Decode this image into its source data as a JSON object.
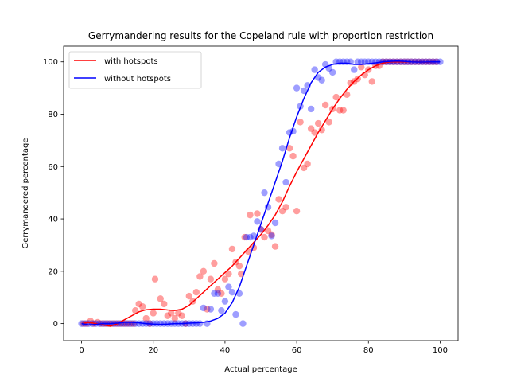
{
  "chart_data": {
    "type": "scatter",
    "title": "Gerrymandering results for the Copeland rule with proportion restriction",
    "xlabel": "Actual percentage",
    "ylabel": "Gerrymandered percentage",
    "xlim": [
      -5,
      105
    ],
    "ylim": [
      -6.5,
      106
    ],
    "xticks": [
      0,
      20,
      40,
      60,
      80,
      100
    ],
    "yticks": [
      0,
      20,
      40,
      60,
      80,
      100
    ],
    "grid": false,
    "legend_position": "top-left",
    "series": [
      {
        "name": "with hotspots",
        "color": "#ff0000",
        "points": [
          [
            0.5,
            0
          ],
          [
            1.5,
            0
          ],
          [
            2.5,
            1
          ],
          [
            3.5,
            0
          ],
          [
            4.5,
            0.5
          ],
          [
            5.5,
            0
          ],
          [
            6.5,
            0
          ],
          [
            7.5,
            0
          ],
          [
            8.5,
            0
          ],
          [
            9.5,
            0
          ],
          [
            10.5,
            0
          ],
          [
            11.5,
            0
          ],
          [
            12.5,
            0
          ],
          [
            13.5,
            0
          ],
          [
            14.5,
            0
          ],
          [
            15,
            5
          ],
          [
            16,
            7.5
          ],
          [
            17,
            6.5
          ],
          [
            18,
            2
          ],
          [
            19,
            0
          ],
          [
            20,
            4
          ],
          [
            20.5,
            17
          ],
          [
            22,
            9.5
          ],
          [
            23,
            7.5
          ],
          [
            24,
            3
          ],
          [
            25,
            4
          ],
          [
            26,
            2
          ],
          [
            27,
            4
          ],
          [
            28,
            3
          ],
          [
            29,
            0
          ],
          [
            30,
            10.5
          ],
          [
            31,
            8.5
          ],
          [
            32,
            12
          ],
          [
            33,
            18
          ],
          [
            34,
            20
          ],
          [
            35,
            5.5
          ],
          [
            36,
            17
          ],
          [
            37,
            23
          ],
          [
            38,
            13
          ],
          [
            39,
            11.5
          ],
          [
            40,
            17
          ],
          [
            41,
            19
          ],
          [
            42,
            28.5
          ],
          [
            43,
            23.5
          ],
          [
            44,
            22
          ],
          [
            44.5,
            19
          ],
          [
            45.5,
            33
          ],
          [
            46.5,
            27.5
          ],
          [
            47,
            41.5
          ],
          [
            48,
            29
          ],
          [
            49,
            42
          ],
          [
            50,
            36
          ],
          [
            51,
            33
          ],
          [
            52,
            35.5
          ],
          [
            53,
            34
          ],
          [
            54,
            29.5
          ],
          [
            55,
            47.5
          ],
          [
            56,
            43
          ],
          [
            57,
            44.5
          ],
          [
            58,
            67
          ],
          [
            59,
            64
          ],
          [
            60,
            43
          ],
          [
            61,
            77
          ],
          [
            62,
            59.5
          ],
          [
            63,
            61
          ],
          [
            64,
            74.5
          ],
          [
            65,
            73
          ],
          [
            66,
            76.5
          ],
          [
            67,
            74
          ],
          [
            68,
            83.5
          ],
          [
            69,
            77
          ],
          [
            70,
            82
          ],
          [
            71,
            86.5
          ],
          [
            72,
            81.5
          ],
          [
            73,
            81.5
          ],
          [
            74,
            87.5
          ],
          [
            75,
            92
          ],
          [
            76,
            92.5
          ],
          [
            77,
            93.5
          ],
          [
            78,
            98
          ],
          [
            79,
            95
          ],
          [
            80,
            97
          ],
          [
            81,
            92.5
          ],
          [
            82,
            98.5
          ],
          [
            83,
            98.5
          ],
          [
            84,
            100
          ],
          [
            85,
            100
          ],
          [
            86,
            100
          ],
          [
            87,
            100
          ],
          [
            88,
            100
          ],
          [
            89,
            100
          ],
          [
            90,
            100
          ],
          [
            91,
            100
          ],
          [
            92,
            100
          ],
          [
            93,
            100
          ],
          [
            94,
            100
          ],
          [
            95,
            100
          ],
          [
            96,
            100
          ],
          [
            97,
            100
          ],
          [
            98,
            100
          ],
          [
            99,
            100
          ]
        ]
      },
      {
        "name": "without hotspots",
        "color": "#0000ff",
        "points": [
          [
            0,
            0
          ],
          [
            1,
            0
          ],
          [
            2,
            0
          ],
          [
            3,
            0
          ],
          [
            4,
            0
          ],
          [
            5,
            0
          ],
          [
            6,
            0
          ],
          [
            7,
            0
          ],
          [
            8,
            0
          ],
          [
            9,
            0
          ],
          [
            10,
            0
          ],
          [
            11,
            0
          ],
          [
            12,
            0
          ],
          [
            13,
            0
          ],
          [
            14,
            0
          ],
          [
            15,
            0
          ],
          [
            16,
            0
          ],
          [
            17,
            0
          ],
          [
            18,
            0
          ],
          [
            19,
            0
          ],
          [
            20,
            0
          ],
          [
            21,
            0
          ],
          [
            22,
            0
          ],
          [
            23,
            0
          ],
          [
            24,
            0
          ],
          [
            25,
            0
          ],
          [
            26,
            0
          ],
          [
            27,
            0
          ],
          [
            28,
            0
          ],
          [
            29,
            0
          ],
          [
            30,
            0
          ],
          [
            31,
            0
          ],
          [
            32,
            0
          ],
          [
            33,
            0
          ],
          [
            34,
            6
          ],
          [
            35,
            0
          ],
          [
            36,
            5.5
          ],
          [
            37,
            11.5
          ],
          [
            38,
            11.5
          ],
          [
            39,
            5
          ],
          [
            40,
            8.5
          ],
          [
            41,
            14
          ],
          [
            42,
            12
          ],
          [
            43,
            3.5
          ],
          [
            44,
            11.5
          ],
          [
            45,
            0
          ],
          [
            46,
            33
          ],
          [
            47,
            33
          ],
          [
            48,
            33.5
          ],
          [
            49,
            39
          ],
          [
            50,
            36
          ],
          [
            51,
            50
          ],
          [
            52,
            44.5
          ],
          [
            53,
            33.5
          ],
          [
            54,
            38.5
          ],
          [
            55,
            61
          ],
          [
            56,
            67
          ],
          [
            57,
            54
          ],
          [
            58,
            73
          ],
          [
            59,
            73.5
          ],
          [
            60,
            90
          ],
          [
            61,
            83
          ],
          [
            62,
            89
          ],
          [
            63,
            91
          ],
          [
            64,
            82
          ],
          [
            65,
            97
          ],
          [
            66,
            94
          ],
          [
            67,
            93
          ],
          [
            68,
            99
          ],
          [
            69,
            97.5
          ],
          [
            70,
            96
          ],
          [
            71,
            100
          ],
          [
            72,
            100
          ],
          [
            73,
            100
          ],
          [
            74,
            100
          ],
          [
            75,
            100
          ],
          [
            76,
            97
          ],
          [
            77,
            100
          ],
          [
            78,
            100
          ],
          [
            79,
            100
          ],
          [
            80,
            100
          ],
          [
            81,
            100
          ],
          [
            82,
            100
          ],
          [
            83,
            100
          ],
          [
            84,
            100
          ],
          [
            85,
            100
          ],
          [
            86,
            100
          ],
          [
            87,
            100
          ],
          [
            88,
            100
          ],
          [
            89,
            100
          ],
          [
            90,
            100
          ],
          [
            91,
            100
          ],
          [
            92,
            100
          ],
          [
            93,
            100
          ],
          [
            94,
            100
          ],
          [
            95,
            100
          ],
          [
            96,
            100
          ],
          [
            97,
            100
          ],
          [
            98,
            100
          ],
          [
            99,
            100
          ],
          [
            100,
            100
          ]
        ]
      }
    ],
    "lines": [
      {
        "name": "with hotspots",
        "color": "#ff0000",
        "points": [
          [
            0,
            0
          ],
          [
            2,
            0.5
          ],
          [
            4,
            0
          ],
          [
            6,
            -0.5
          ],
          [
            8,
            -1
          ],
          [
            10,
            0
          ],
          [
            12,
            1.5
          ],
          [
            14,
            3
          ],
          [
            16,
            4.5
          ],
          [
            18,
            5.3
          ],
          [
            20,
            5.5
          ],
          [
            22,
            5.5
          ],
          [
            24,
            5.2
          ],
          [
            26,
            5
          ],
          [
            28,
            5.5
          ],
          [
            30,
            7
          ],
          [
            32,
            9.5
          ],
          [
            34,
            12
          ],
          [
            36,
            14.5
          ],
          [
            38,
            17
          ],
          [
            40,
            19.5
          ],
          [
            42,
            22
          ],
          [
            44,
            25
          ],
          [
            46,
            28
          ],
          [
            48,
            31
          ],
          [
            50,
            34
          ],
          [
            52,
            37.5
          ],
          [
            54,
            41.5
          ],
          [
            56,
            46.5
          ],
          [
            58,
            52.5
          ],
          [
            60,
            58
          ],
          [
            62,
            63
          ],
          [
            64,
            68
          ],
          [
            66,
            73
          ],
          [
            68,
            77.5
          ],
          [
            70,
            82
          ],
          [
            72,
            86
          ],
          [
            74,
            89.5
          ],
          [
            76,
            92.5
          ],
          [
            78,
            95
          ],
          [
            80,
            97
          ],
          [
            82,
            98.5
          ],
          [
            84,
            99.5
          ],
          [
            86,
            100
          ],
          [
            88,
            100
          ],
          [
            90,
            100
          ],
          [
            92,
            100
          ],
          [
            94,
            100
          ],
          [
            96,
            99.8
          ],
          [
            98,
            100
          ],
          [
            100,
            100
          ]
        ]
      },
      {
        "name": "without hotspots",
        "color": "#0000ff",
        "points": [
          [
            0,
            0
          ],
          [
            2,
            -0.5
          ],
          [
            4,
            -0.3
          ],
          [
            6,
            0
          ],
          [
            8,
            0
          ],
          [
            10,
            0.2
          ],
          [
            12,
            0.5
          ],
          [
            14,
            0.5
          ],
          [
            16,
            0.3
          ],
          [
            18,
            0
          ],
          [
            20,
            -0.2
          ],
          [
            22,
            -0.3
          ],
          [
            24,
            -0.2
          ],
          [
            26,
            0
          ],
          [
            28,
            0
          ],
          [
            30,
            0.2
          ],
          [
            32,
            0.3
          ],
          [
            34,
            0.5
          ],
          [
            36,
            1
          ],
          [
            38,
            2
          ],
          [
            40,
            4
          ],
          [
            42,
            8
          ],
          [
            44,
            14
          ],
          [
            46,
            22
          ],
          [
            48,
            30
          ],
          [
            50,
            38
          ],
          [
            52,
            46
          ],
          [
            54,
            54
          ],
          [
            56,
            62
          ],
          [
            58,
            71
          ],
          [
            60,
            79
          ],
          [
            62,
            86
          ],
          [
            64,
            92
          ],
          [
            66,
            96
          ],
          [
            68,
            98
          ],
          [
            70,
            99
          ],
          [
            72,
            99.5
          ],
          [
            74,
            99.5
          ],
          [
            76,
            99
          ],
          [
            78,
            99
          ],
          [
            80,
            99.3
          ],
          [
            82,
            99.6
          ],
          [
            84,
            100
          ],
          [
            86,
            100.2
          ],
          [
            88,
            100.3
          ],
          [
            90,
            100.2
          ],
          [
            92,
            100
          ],
          [
            94,
            99.9
          ],
          [
            96,
            99.9
          ],
          [
            98,
            100
          ],
          [
            100,
            100
          ]
        ]
      }
    ]
  }
}
